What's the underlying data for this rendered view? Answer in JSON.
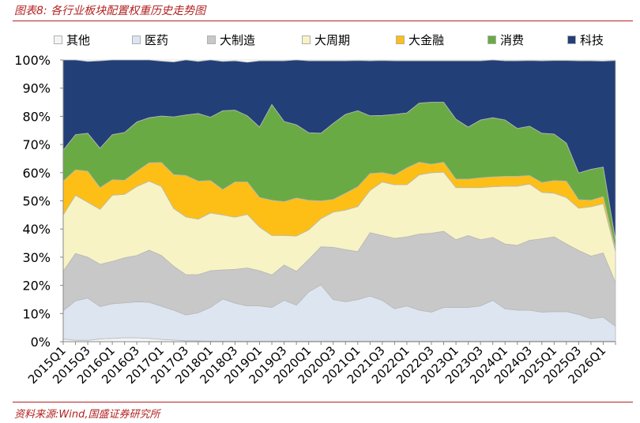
{
  "header": {
    "title": "图表8:  各行业板块配置权重历史走势图"
  },
  "footer": {
    "source": "资料来源:Wind,国盛证券研究所"
  },
  "colors": {
    "其他": "#f4f4f4",
    "医药": "#dce5f0",
    "大制造": "#c8c8c8",
    "大周期": "#f7f3c4",
    "大金融": "#fdbf16",
    "消费": "#6aaa44",
    "科技": "#223f78",
    "title": "#b22222"
  },
  "chart_data": {
    "type": "area",
    "stacked": true,
    "title": "",
    "xlabel": "",
    "ylabel": "",
    "ylim": [
      0,
      100
    ],
    "yticks": [
      "0%",
      "10%",
      "20%",
      "30%",
      "40%",
      "50%",
      "60%",
      "70%",
      "80%",
      "90%",
      "100%"
    ],
    "x": [
      "2015Q1",
      "2015Q2",
      "2015Q3",
      "2015Q4",
      "2016Q1",
      "2016Q2",
      "2016Q3",
      "2016Q4",
      "2017Q1",
      "2017Q2",
      "2017Q3",
      "2017Q4",
      "2018Q1",
      "2018Q2",
      "2018Q3",
      "2018Q4",
      "2019Q1",
      "2019Q2",
      "2019Q3",
      "2019Q4",
      "2020Q1",
      "2020Q2",
      "2020Q3",
      "2020Q4",
      "2021Q1",
      "2021Q2",
      "2021Q3",
      "2021Q4",
      "2022Q1",
      "2022Q2",
      "2022Q3",
      "2022Q4",
      "2023Q1",
      "2023Q2",
      "2023Q3",
      "2023Q4",
      "2024Q1",
      "2024Q2",
      "2024Q3",
      "2024Q4",
      "2025Q1",
      "2025Q2",
      "2025Q3",
      "2025Q4",
      "2026Q1",
      "2026Q2"
    ],
    "x_ticklabels": [
      "2015Q1",
      "2015Q3",
      "2016Q1",
      "2016Q3",
      "2017Q1",
      "2017Q3",
      "2018Q1",
      "2018Q3",
      "2019Q1",
      "2019Q3",
      "2020Q1",
      "2020Q3",
      "2021Q1",
      "2021Q3",
      "2022Q1",
      "2022Q3",
      "2023Q1",
      "2023Q3",
      "2024Q1",
      "2024Q3",
      "2025Q1",
      "2025Q3",
      "2026Q1"
    ],
    "legend_position": "top",
    "series": [
      {
        "name": "其他",
        "values": [
          1,
          0.5,
          0.5,
          1,
          1.2,
          1.4,
          1.4,
          1.2,
          0.8,
          0.6,
          0.3,
          0.3,
          0.2,
          0.2,
          0.2,
          0.2,
          0.2,
          0.2,
          0.2,
          0.2,
          0.2,
          0.2,
          0.2,
          0.2,
          0.2,
          0.2,
          0.2,
          0.2,
          0.2,
          0.2,
          0.2,
          0.2,
          0.2,
          0.2,
          0.2,
          0.2,
          0.2,
          0.2,
          0.2,
          0.2,
          0.2,
          0.2,
          0.2,
          0.2,
          0.2,
          0.2
        ]
      },
      {
        "name": "医药",
        "values": [
          10,
          14,
          15,
          11.5,
          12.3,
          12.4,
          12.8,
          12.8,
          11.8,
          10.6,
          9.2,
          10,
          12,
          15,
          13.5,
          12.5,
          12.5,
          12,
          14.5,
          12.8,
          17.5,
          20,
          14.8,
          14,
          14.8,
          16,
          14.5,
          11.5,
          12.5,
          11,
          10.3,
          12,
          12,
          12,
          12.5,
          14.5,
          11.5,
          11,
          11,
          10.3,
          10.5,
          10.5,
          9.5,
          8,
          8.5,
          5.3
        ]
      },
      {
        "name": "大制造",
        "values": [
          14,
          16.8,
          14.5,
          15,
          15,
          16,
          16.4,
          18.5,
          18,
          15.6,
          14.3,
          13.5,
          13,
          10.3,
          12,
          13.5,
          12.5,
          11.5,
          12.5,
          12,
          11.5,
          13.5,
          18.5,
          18.5,
          17,
          22.5,
          23,
          25,
          24.5,
          27,
          28,
          27,
          24,
          25.5,
          23.5,
          22.3,
          23,
          23,
          24.8,
          26,
          26.5,
          24,
          22.7,
          22.2,
          22.8,
          15.5
        ]
      },
      {
        "name": "大周期",
        "values": [
          20,
          20.7,
          19.5,
          19.5,
          23.5,
          22.5,
          24.5,
          24.5,
          24.5,
          20.5,
          20.5,
          19.7,
          20.5,
          19.5,
          18.5,
          19,
          15.5,
          14,
          10.5,
          12.5,
          10.5,
          10,
          12.5,
          14,
          16,
          15,
          19,
          19,
          18.5,
          21,
          21.5,
          21,
          18.5,
          17,
          18.5,
          18,
          20.5,
          21,
          20,
          16.5,
          15.5,
          16.5,
          15,
          17.5,
          17.5,
          11
        ]
      },
      {
        "name": "大金融",
        "values": [
          12,
          9,
          11,
          7.7,
          5.5,
          5,
          5.4,
          6.5,
          8.5,
          12,
          14.7,
          13.5,
          11.5,
          9,
          12.5,
          11.5,
          10.5,
          12.5,
          12,
          13.5,
          10.5,
          6.3,
          4.5,
          6,
          7,
          6,
          3.3,
          3.5,
          6,
          4.5,
          3,
          3.5,
          3,
          3,
          3.5,
          3.5,
          3.5,
          3.5,
          3,
          3.5,
          4.5,
          5.8,
          3,
          2.3,
          2.5,
          1
        ]
      },
      {
        "name": "消费",
        "values": [
          11,
          12.5,
          13.5,
          14,
          16,
          17,
          17.5,
          16,
          16.5,
          20.5,
          21.5,
          24,
          22.5,
          28,
          25.5,
          23.5,
          25,
          34,
          28.5,
          26,
          24,
          24,
          27,
          28,
          27,
          20.5,
          20.3,
          21.5,
          19.5,
          21,
          22,
          21.3,
          21.3,
          18.5,
          20.5,
          21,
          20,
          17,
          17.5,
          17.5,
          16.5,
          13.5,
          9.5,
          11,
          10.5,
          3
        ]
      },
      {
        "name": "科技",
        "values": [
          32,
          26.5,
          25.5,
          31,
          26.5,
          26.5,
          22,
          20.5,
          19.5,
          19.5,
          19.5,
          18.5,
          20.5,
          17.5,
          17.5,
          19,
          23.5,
          15.5,
          21.5,
          23,
          25.5,
          25.7,
          22.2,
          19,
          17.8,
          19.5,
          19.5,
          19,
          18.5,
          15,
          14.7,
          14.7,
          20.7,
          23.5,
          21,
          21,
          21,
          24,
          23.3,
          25.7,
          26.1,
          29.3,
          39.8,
          38.5,
          37.6,
          63.8
        ]
      }
    ]
  }
}
